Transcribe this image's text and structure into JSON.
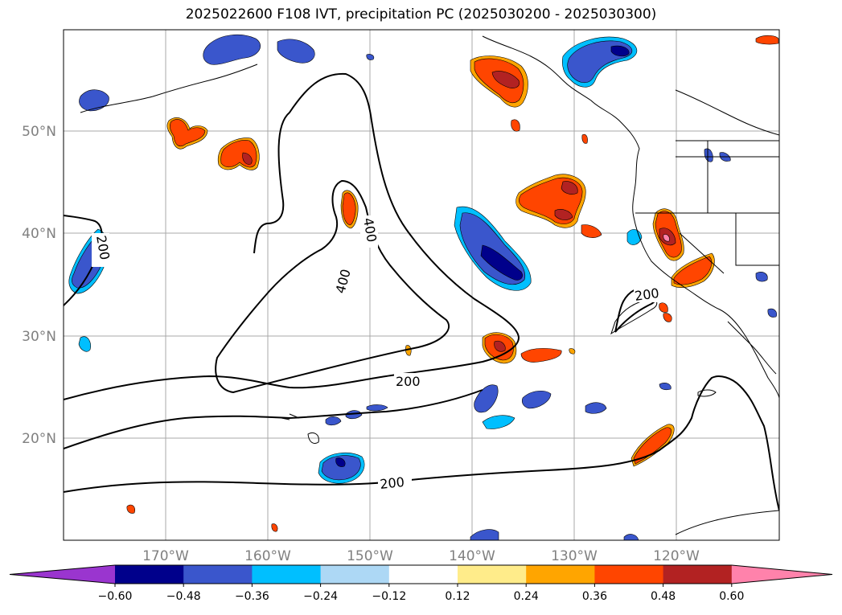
{
  "title": "2025022600 F108 IVT, precipitation PC (2025030200 - 2025030300)",
  "map": {
    "lat_labels": [
      "50°N",
      "40°N",
      "30°N",
      "20°N"
    ],
    "lon_labels": [
      "170°W",
      "160°W",
      "150°W",
      "140°W",
      "130°W",
      "120°W"
    ],
    "contour_labels": [
      "400",
      "400",
      "200",
      "200",
      "200",
      "200"
    ]
  },
  "colorbar": {
    "ticks": [
      "−0.60",
      "−0.48",
      "−0.36",
      "−0.24",
      "−0.12",
      "0.12",
      "0.24",
      "0.36",
      "0.48",
      "0.60"
    ],
    "colors": {
      "under": "#9a35cf",
      "bins": [
        "#00008b",
        "#3a56cc",
        "#00bfff",
        "#add8f5",
        "#ffffff",
        "#ffec8a",
        "#ffa500",
        "#ff4500",
        "#b22222",
        "#ff82ab"
      ]
    }
  }
}
